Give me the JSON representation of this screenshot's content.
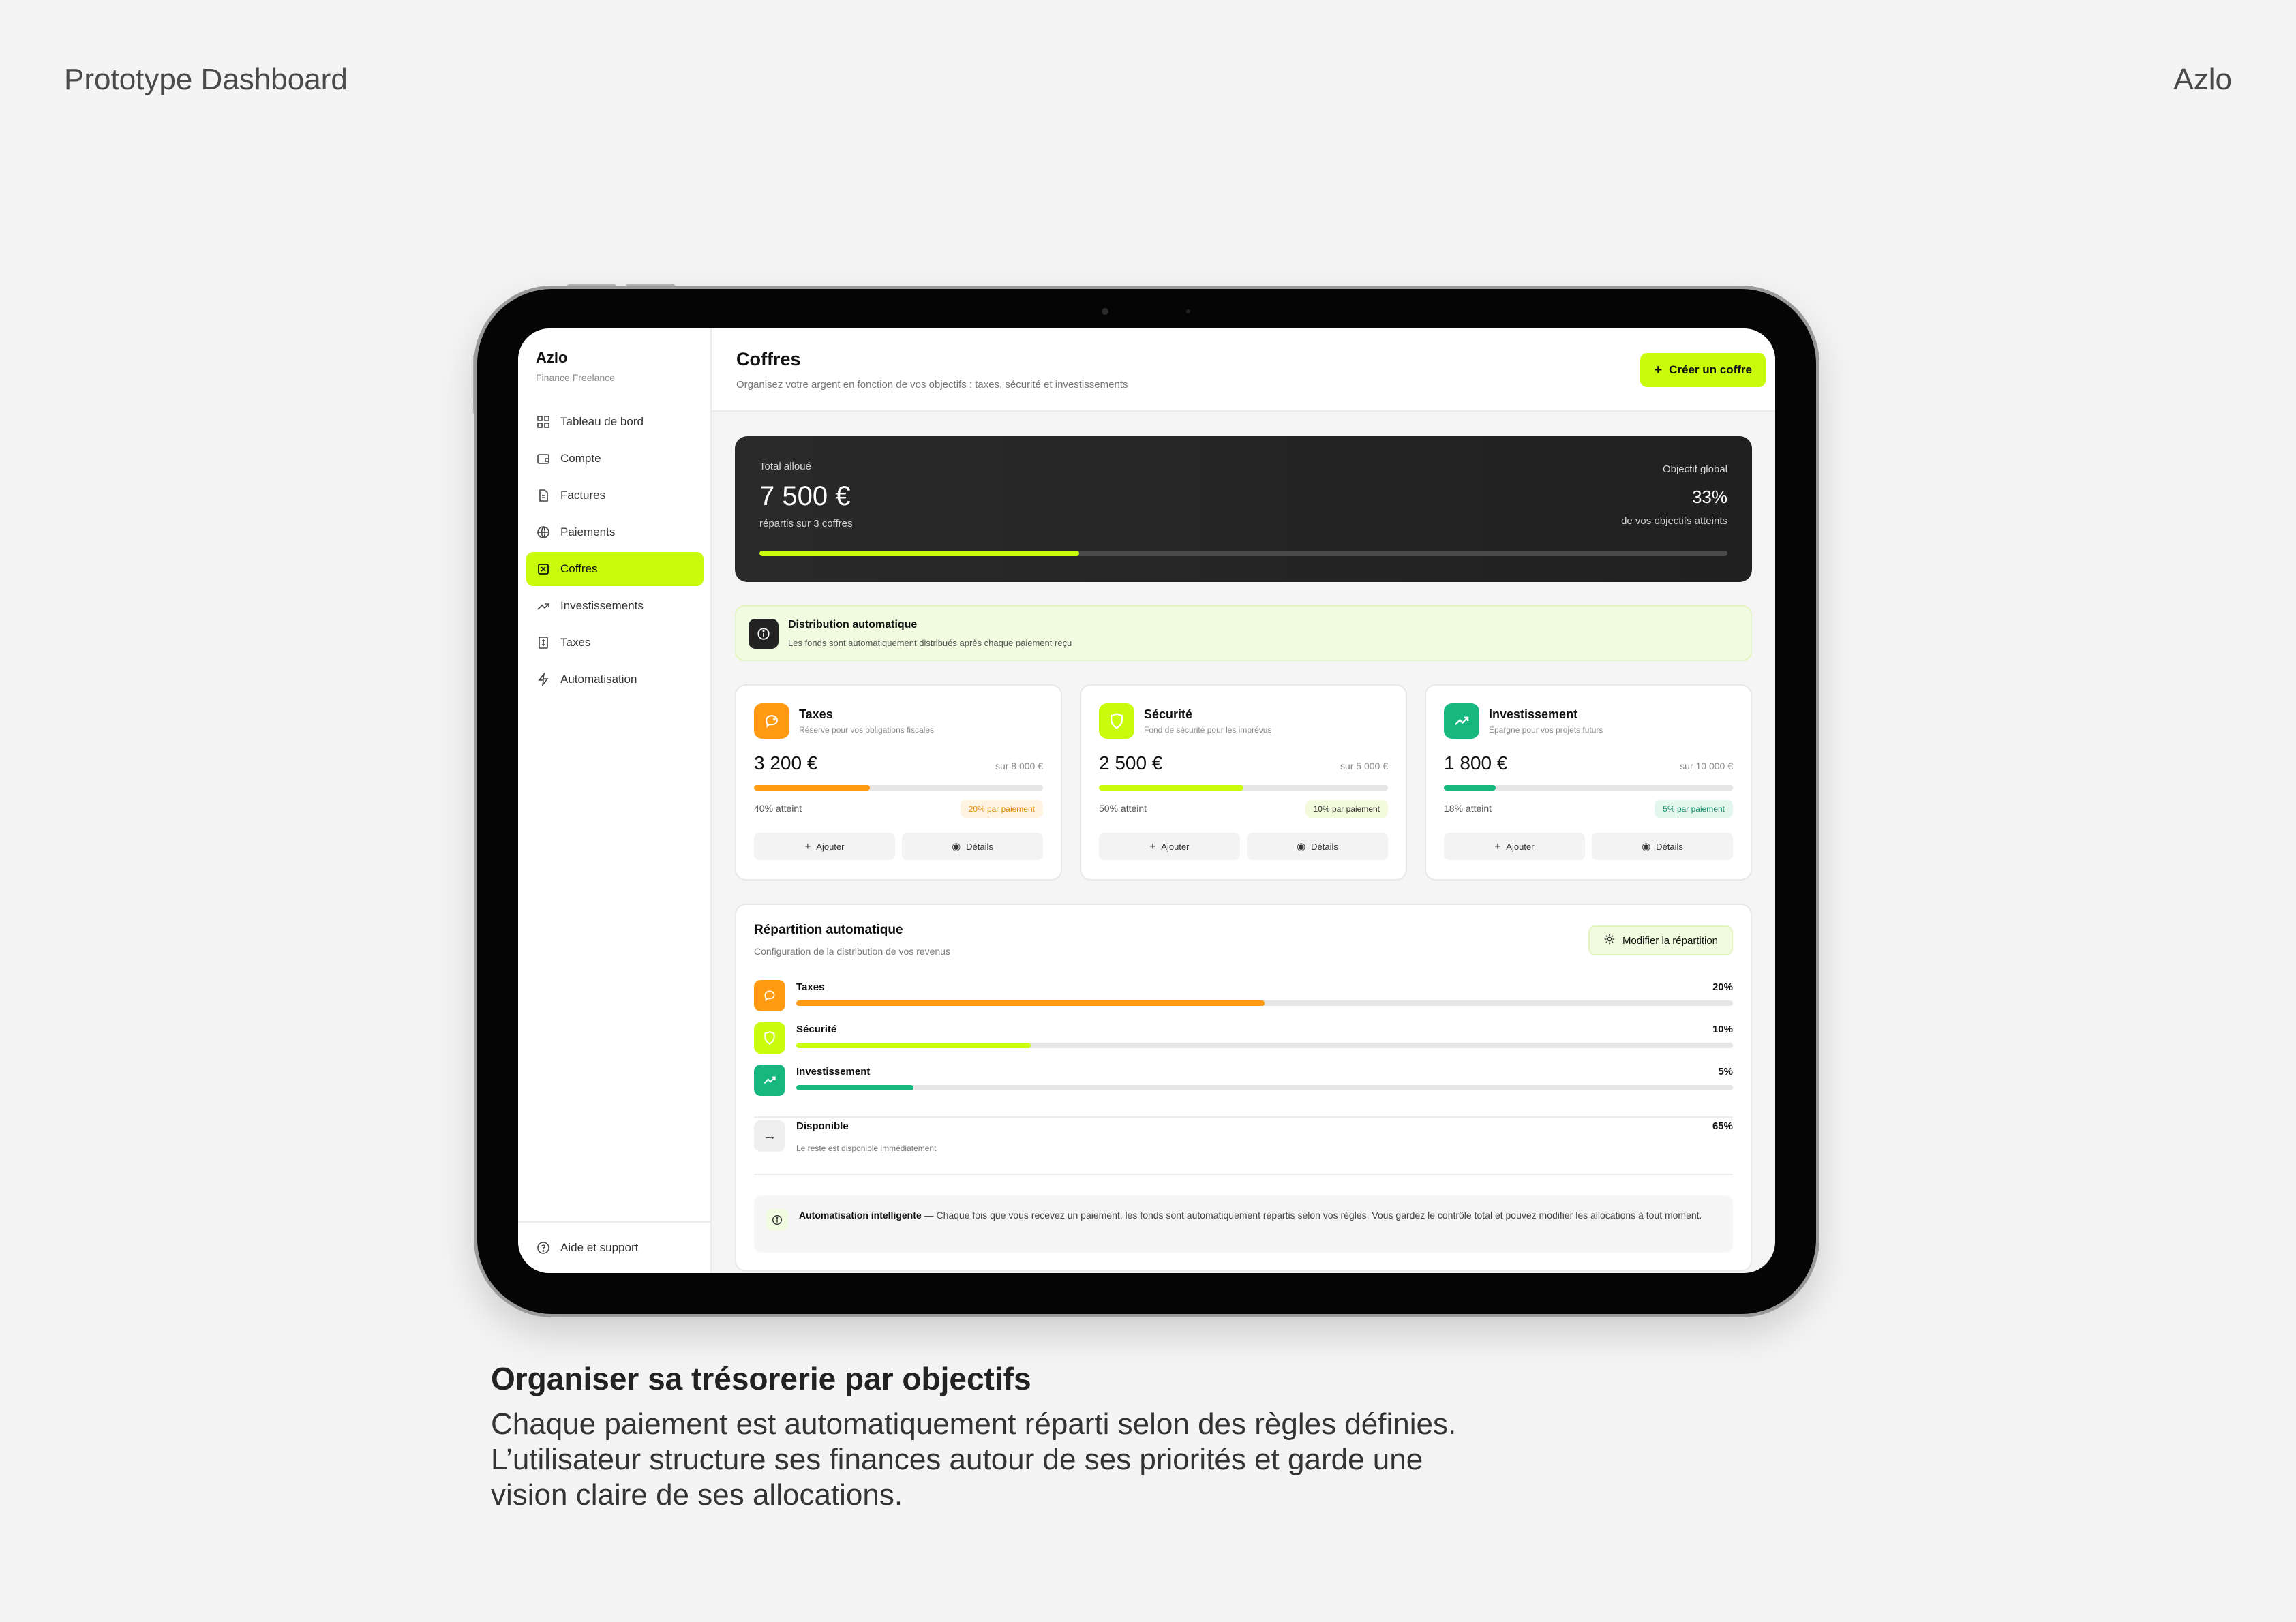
{
  "page": {
    "header_left": "Prototype Dashboard",
    "header_right": "Azlo",
    "caption_title": "Organiser sa trésorerie par objectifs",
    "caption_lines": [
      "Chaque paiement est automatiquement réparti selon des règles définies.",
      "L’utilisateur structure ses finances autour de ses priorités et garde une",
      "vision claire de ses allocations."
    ]
  },
  "colors": {
    "accent": "#c9fb0c",
    "taxes": "#ff9a12",
    "securite": "#c9fb0c",
    "investissement": "#17b87f",
    "dark": "#222222"
  },
  "sidebar": {
    "brand": "Azlo",
    "subtitle": "Finance Freelance",
    "items": [
      {
        "label": "Tableau de bord",
        "icon": "grid-icon"
      },
      {
        "label": "Compte",
        "icon": "wallet-icon"
      },
      {
        "label": "Factures",
        "icon": "document-icon"
      },
      {
        "label": "Paiements",
        "icon": "globe-icon"
      },
      {
        "label": "Coffres",
        "icon": "vault-icon",
        "active": true
      },
      {
        "label": "Investissements",
        "icon": "trend-up-icon"
      },
      {
        "label": "Taxes",
        "icon": "receipt-icon"
      },
      {
        "label": "Automatisation",
        "icon": "lightning-icon"
      }
    ],
    "help": "Aide et support"
  },
  "header": {
    "title": "Coffres",
    "subtitle": "Organisez votre argent en fonction de vos objectifs : taxes, sécurité et investissements",
    "create_label": "Créer un coffre"
  },
  "summary": {
    "label": "Total alloué",
    "amount": "7 500 €",
    "sub": "répartis sur 3 coffres",
    "goal_label": "Objectif global",
    "goal_value": "33%",
    "goal_sub": "de vos objectifs atteints",
    "progress": 0.33
  },
  "notice": {
    "title": "Distribution automatique",
    "text": "Les fonds sont automatiquement distribués après chaque paiement reçu"
  },
  "vaults": [
    {
      "name": "Taxes",
      "desc": "Réserve pour vos obligations fiscales",
      "amount": "3 200 €",
      "goal": "sur 8 000 €",
      "reached": "40% atteint",
      "progress": 0.4,
      "rate": "20% par paiement",
      "icon": "piggy-bank-icon"
    },
    {
      "name": "Sécurité",
      "desc": "Fond de sécurité pour les imprévus",
      "amount": "2 500 €",
      "goal": "sur 5 000 €",
      "reached": "50% atteint",
      "progress": 0.5,
      "rate": "10% par paiement",
      "icon": "shield-icon"
    },
    {
      "name": "Investissement",
      "desc": "Épargne pour vos projets futurs",
      "amount": "1 800 €",
      "goal": "sur 10 000 €",
      "reached": "18% atteint",
      "progress": 0.18,
      "rate": "5% par paiement",
      "icon": "trend-up-icon"
    }
  ],
  "vault_actions": {
    "add": "Ajouter",
    "details": "Détails"
  },
  "allocation": {
    "title": "Répartition automatique",
    "subtitle": "Configuration de la distribution de vos revenus",
    "button": "Modifier la répartition",
    "rows": [
      {
        "name": "Taxes",
        "pct": "20%",
        "fill": 0.5
      },
      {
        "name": "Sécurité",
        "pct": "10%",
        "fill": 0.25
      },
      {
        "name": "Investissement",
        "pct": "5%",
        "fill": 0.125
      }
    ],
    "available": {
      "name": "Disponible",
      "sub": "Le reste est disponible immédiatement",
      "pct": "65%"
    },
    "smart_title": "Automatisation intelligente",
    "smart_text": " — Chaque fois que vous recevez un paiement, les fonds sont automatiquement répartis selon vos règles. Vous gardez le contrôle total et pouvez modifier les allocations à tout moment."
  }
}
